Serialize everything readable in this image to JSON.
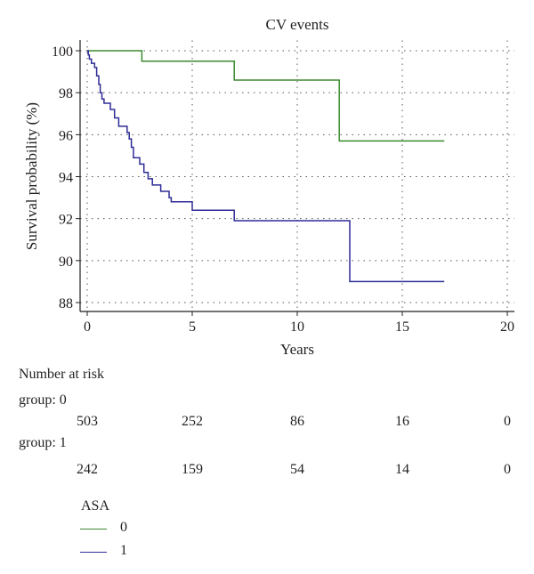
{
  "chart_data": {
    "type": "line",
    "title": "CV events",
    "xlabel": "Years",
    "ylabel": "Survival probability (%)",
    "xlim": [
      0,
      20
    ],
    "ylim": [
      88,
      100
    ],
    "x_ticks": [
      0,
      5,
      10,
      15,
      20
    ],
    "y_ticks": [
      88,
      90,
      92,
      94,
      96,
      98,
      100
    ],
    "x_tick_labels": [
      "0",
      "5",
      "10",
      "15",
      "20"
    ],
    "y_tick_labels": [
      "88",
      "90",
      "92",
      "94",
      "96",
      "98",
      "100"
    ],
    "grid": "dotted",
    "step": true,
    "series": [
      {
        "name": "0",
        "color": "#3a8a2e",
        "points": [
          [
            0,
            100
          ],
          [
            2.6,
            100
          ],
          [
            2.6,
            99.5
          ],
          [
            7.0,
            99.5
          ],
          [
            7.0,
            98.6
          ],
          [
            12.0,
            98.6
          ],
          [
            12.0,
            95.7
          ],
          [
            17.0,
            95.7
          ]
        ]
      },
      {
        "name": "1",
        "color": "#2e2c96",
        "points": [
          [
            0,
            100
          ],
          [
            0.05,
            100
          ],
          [
            0.05,
            99.8
          ],
          [
            0.1,
            99.8
          ],
          [
            0.1,
            99.6
          ],
          [
            0.2,
            99.6
          ],
          [
            0.2,
            99.4
          ],
          [
            0.35,
            99.4
          ],
          [
            0.35,
            99.2
          ],
          [
            0.45,
            99.2
          ],
          [
            0.45,
            98.8
          ],
          [
            0.55,
            98.8
          ],
          [
            0.55,
            98.4
          ],
          [
            0.62,
            98.4
          ],
          [
            0.62,
            98.0
          ],
          [
            0.7,
            98.0
          ],
          [
            0.7,
            97.7
          ],
          [
            0.8,
            97.7
          ],
          [
            0.8,
            97.5
          ],
          [
            1.1,
            97.5
          ],
          [
            1.1,
            97.2
          ],
          [
            1.3,
            97.2
          ],
          [
            1.3,
            96.8
          ],
          [
            1.5,
            96.8
          ],
          [
            1.5,
            96.4
          ],
          [
            1.9,
            96.4
          ],
          [
            1.9,
            96.1
          ],
          [
            2.0,
            96.1
          ],
          [
            2.0,
            95.8
          ],
          [
            2.1,
            95.8
          ],
          [
            2.1,
            95.4
          ],
          [
            2.2,
            95.4
          ],
          [
            2.2,
            94.9
          ],
          [
            2.5,
            94.9
          ],
          [
            2.5,
            94.6
          ],
          [
            2.7,
            94.6
          ],
          [
            2.7,
            94.2
          ],
          [
            2.9,
            94.2
          ],
          [
            2.9,
            93.9
          ],
          [
            3.1,
            93.9
          ],
          [
            3.1,
            93.6
          ],
          [
            3.5,
            93.6
          ],
          [
            3.5,
            93.3
          ],
          [
            3.9,
            93.3
          ],
          [
            3.9,
            93.0
          ],
          [
            4.0,
            93.0
          ],
          [
            4.0,
            92.8
          ],
          [
            5.0,
            92.8
          ],
          [
            5.0,
            92.4
          ],
          [
            7.0,
            92.4
          ],
          [
            7.0,
            91.9
          ],
          [
            12.5,
            91.9
          ],
          [
            12.5,
            89.0
          ],
          [
            17.0,
            89.0
          ]
        ]
      }
    ],
    "legend": {
      "title": "ASA",
      "entries": [
        "0",
        "1"
      ],
      "placement": "bottom-left"
    }
  },
  "risk_table": {
    "title": "Number at risk",
    "groups": [
      {
        "label": "group: 0",
        "counts": [
          "503",
          "252",
          "86",
          "16",
          "0"
        ]
      },
      {
        "label": "group: 1",
        "counts": [
          "242",
          "159",
          "54",
          "14",
          "0"
        ]
      }
    ]
  }
}
